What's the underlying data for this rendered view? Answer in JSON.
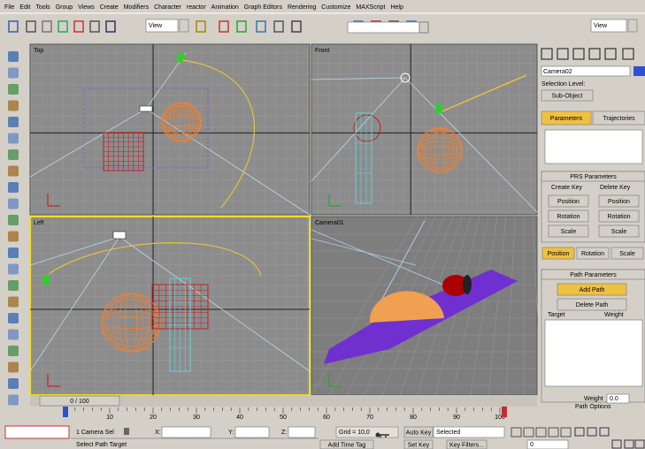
{
  "menu": [
    "File",
    "Edit",
    "Tools",
    "Group",
    "Views",
    "Create",
    "Modifiers",
    "Character",
    "reactor",
    "Animation",
    "Graph Editors",
    "Rendering",
    "Customize",
    "MAXScript",
    "Help"
  ],
  "toolbar": {
    "view_1": "View",
    "view_2": "View"
  },
  "viewports": [
    "Top",
    "Front",
    "Left",
    "Camera01"
  ],
  "panel": {
    "object_name": "Camera02",
    "selection_level": "Selection Level:",
    "sub_object": "Sub-Object",
    "tabs": [
      "Parameters",
      "Trajectories"
    ],
    "prs": {
      "title": "PRS Parameters",
      "create_key": "Create Key",
      "delete_key": "Delete Key",
      "create_buttons": [
        "Position",
        "Rotation",
        "Scale"
      ],
      "delete_buttons": [
        "Position",
        "Rotation",
        "Scale"
      ],
      "modes": [
        "Position",
        "Rotation",
        "Scale"
      ]
    },
    "path": {
      "title": "Path Parameters",
      "add": "Add Path",
      "delete": "Delete Path",
      "target": "Target",
      "weight": "Weight",
      "weight_label": "Weight",
      "weight_value": "0.0",
      "options": "Path Options"
    }
  },
  "timeline": {
    "frame": "0 / 100",
    "ruler": [
      10,
      20,
      30,
      40,
      50,
      60,
      70,
      80,
      90,
      100
    ]
  },
  "status": {
    "selection": "1 Camera Sel",
    "x": "X:",
    "y": "Y:",
    "z": "Z:",
    "grid": "Grid = 10,0",
    "auto_key": "Auto Key",
    "key_mode": "Selected",
    "set_key": "Set Key",
    "key_filters": "Key Filters...",
    "prompt": "Select Path Target",
    "time_tag": "Add Time Tag",
    "frame": "0"
  }
}
